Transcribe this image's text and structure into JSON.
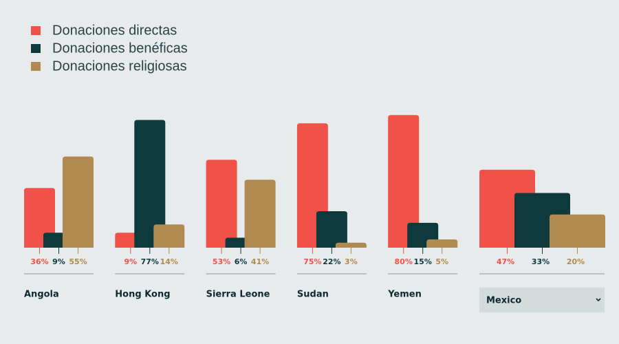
{
  "chart_data": {
    "type": "bar",
    "categories": [
      "Angola",
      "Hong Kong",
      "Sierra Leone",
      "Sudan",
      "Yemen",
      "Mexico"
    ],
    "series": [
      {
        "name": "Donaciones directas",
        "color": "#f0524a",
        "values": [
          36,
          9,
          53,
          75,
          80,
          47
        ],
        "value_labels": [
          "36%",
          "9%",
          "53%",
          "75%",
          "80%",
          "47%"
        ]
      },
      {
        "name": "Donaciones benéficas",
        "color": "#0e3a3d",
        "values": [
          9,
          77,
          6,
          22,
          15,
          33
        ],
        "value_labels": [
          "9%",
          "77%",
          "6%",
          "22%",
          "15%",
          "33%"
        ]
      },
      {
        "name": "Donaciones religiosas",
        "color": "#b08a50",
        "values": [
          55,
          14,
          41,
          3,
          5,
          20
        ],
        "value_labels": [
          "55%",
          "14%",
          "41%",
          "3%",
          "5%",
          "20%"
        ]
      }
    ]
  }
}
